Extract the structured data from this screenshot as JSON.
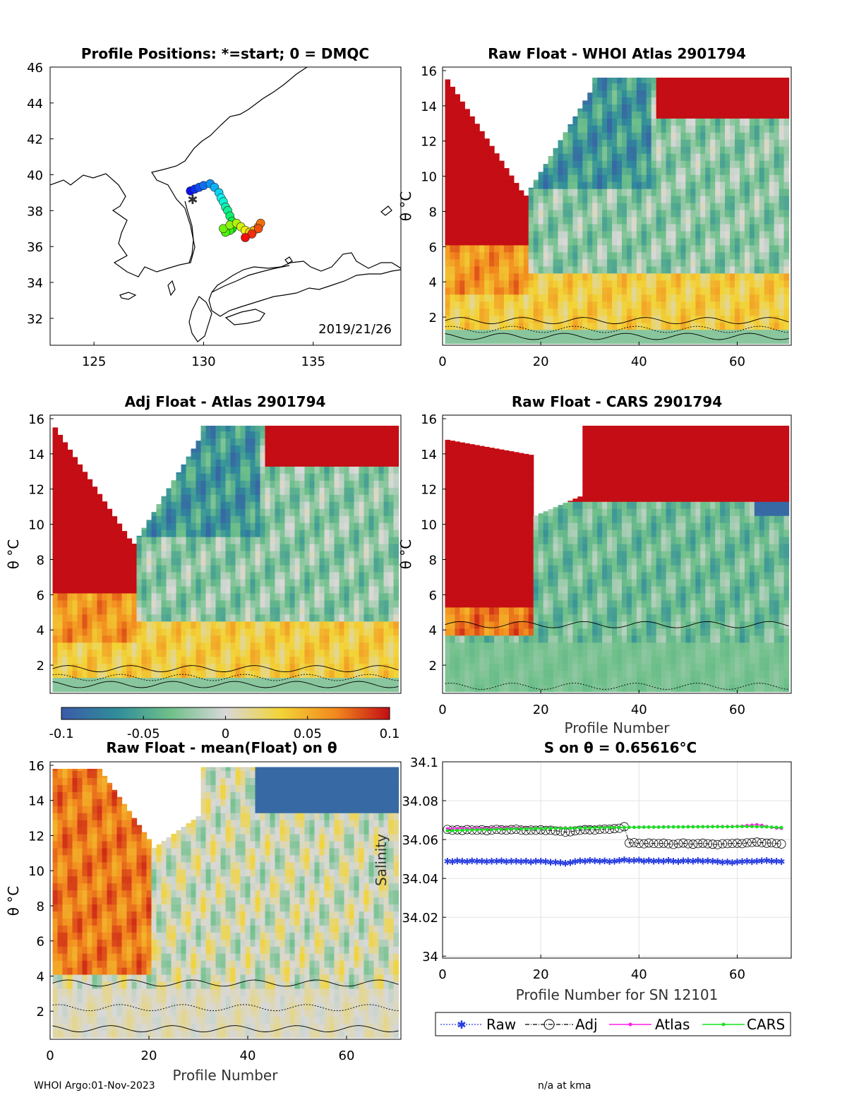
{
  "figure": {
    "footer_left": "WHOI Argo:01-Nov-2023",
    "footer_right": "n/a at kma"
  },
  "colorbar": {
    "ticks": [
      "-0.1",
      "-0.05",
      "0",
      "0.05",
      "0.1"
    ],
    "colors": [
      "#3b5ba8",
      "#2f8c9a",
      "#6fc08a",
      "#d8d8d8",
      "#f2d437",
      "#f28a1e",
      "#c40d14"
    ]
  },
  "chart_data": [
    {
      "id": "map",
      "type": "scatter",
      "title": "Profile Positions: *=start; 0 = DMQC",
      "annotation": "2019/21/26",
      "xlim": [
        123,
        139
      ],
      "ylim": [
        30.5,
        46
      ],
      "xticks": [
        "125",
        "130",
        "135"
      ],
      "yticks": [
        "32",
        "34",
        "36",
        "38",
        "40",
        "42",
        "44",
        "46"
      ],
      "start": [
        129.5,
        38.6
      ],
      "points": {
        "lon": [
          129.4,
          129.6,
          129.8,
          130.0,
          130.3,
          130.5,
          130.7,
          130.8,
          130.9,
          131.0,
          131.1,
          131.2,
          131.3,
          131.4,
          131.3,
          131.2,
          131.0,
          130.9,
          131.2,
          131.5,
          131.7,
          131.9,
          132.1,
          132.3,
          132.5,
          132.6,
          132.5,
          132.2,
          131.9
        ],
        "lat": [
          39.1,
          39.2,
          39.3,
          39.4,
          39.5,
          39.3,
          39.0,
          38.7,
          38.5,
          38.2,
          38.0,
          37.7,
          37.4,
          37.2,
          37.0,
          36.9,
          36.8,
          37.0,
          37.2,
          37.3,
          37.1,
          36.9,
          36.8,
          36.9,
          37.1,
          37.3,
          37.0,
          36.7,
          36.5
        ]
      }
    },
    {
      "id": "p2",
      "type": "heatmap",
      "title": "Raw Float - WHOI Atlas  2901794",
      "ylabel": "θ °C",
      "xlim": [
        0,
        71
      ],
      "ylim": [
        0.4,
        16.2
      ],
      "xticks": [
        "0",
        "20",
        "40",
        "60"
      ],
      "yticks": [
        "2",
        "4",
        "6",
        "8",
        "10",
        "12",
        "14",
        "16"
      ]
    },
    {
      "id": "p3",
      "type": "heatmap",
      "title": "Adj Float - Atlas  2901794",
      "ylabel": "θ °C",
      "xlim": [
        0,
        71
      ],
      "ylim": [
        0.4,
        16.2
      ],
      "xticks": [],
      "yticks": [
        "2",
        "4",
        "6",
        "8",
        "10",
        "12",
        "14",
        "16"
      ]
    },
    {
      "id": "p4",
      "type": "heatmap",
      "title": "Raw Float - CARS  2901794",
      "ylabel": "θ °C",
      "xlabel": "Profile Number",
      "xlim": [
        0,
        71
      ],
      "ylim": [
        0.4,
        16.2
      ],
      "xticks": [
        "0",
        "20",
        "40",
        "60"
      ],
      "yticks": [
        "2",
        "4",
        "6",
        "8",
        "10",
        "12",
        "14",
        "16"
      ]
    },
    {
      "id": "p5",
      "type": "heatmap",
      "title": "Raw Float - mean(Float) on θ",
      "ylabel": "θ °C",
      "xlabel": "Profile Number",
      "xlim": [
        0,
        71
      ],
      "ylim": [
        0.4,
        16.2
      ],
      "xticks": [
        "0",
        "20",
        "40",
        "60"
      ],
      "yticks": [
        "2",
        "4",
        "6",
        "8",
        "10",
        "12",
        "14",
        "16"
      ]
    },
    {
      "id": "p6",
      "type": "line",
      "title": "S on θ = 0.65616°C",
      "ylabel": "Salinity",
      "xlabel": "Profile Number for SN 12101",
      "xlim": [
        0,
        71
      ],
      "ylim": [
        33.999,
        34.1
      ],
      "xticks": [
        "0",
        "20",
        "40",
        "60"
      ],
      "yticks": [
        "34",
        "34.02",
        "34.04",
        "34.06",
        "34.08",
        "34.1"
      ],
      "legend": [
        "Raw",
        "Adj",
        "Atlas",
        "CARS"
      ],
      "series": [
        {
          "name": "Raw",
          "x0": 1,
          "values": [
            34.049,
            34.0488,
            34.0492,
            34.049,
            34.0487,
            34.0491,
            34.0489,
            34.049,
            34.0488,
            34.049,
            34.0489,
            34.0491,
            34.0487,
            34.0489,
            34.049,
            34.0488,
            34.049,
            34.0486,
            34.0489,
            34.049,
            34.0487,
            34.0485,
            34.0484,
            34.0483,
            34.0478,
            34.0482,
            34.0488,
            34.0491,
            34.049,
            34.0493,
            34.0492,
            34.0489,
            34.0491,
            34.0488,
            34.0489,
            34.0493,
            34.0496,
            34.0494,
            34.0493,
            34.0495,
            34.049,
            34.0493,
            34.0489,
            34.0491,
            34.049,
            34.0493,
            34.049,
            34.0488,
            34.0492,
            34.0491,
            34.0489,
            34.0493,
            34.049,
            34.0491,
            34.0489,
            34.0487,
            34.0485,
            34.0486,
            34.0483,
            34.0486,
            34.0488,
            34.049,
            34.0487,
            34.0489,
            34.0491,
            34.0493,
            34.049,
            34.0489,
            34.0488
          ]
        },
        {
          "name": "Adj",
          "x0": 1,
          "values": [
            34.0652,
            34.0648,
            34.065,
            34.0647,
            34.0651,
            34.0649,
            34.0648,
            34.065,
            34.0646,
            34.0649,
            34.0652,
            34.065,
            34.0648,
            34.0651,
            34.0653,
            34.0649,
            34.0647,
            34.0649,
            34.0648,
            34.065,
            34.0647,
            34.0648,
            34.0645,
            34.0643,
            34.0638,
            34.064,
            34.0645,
            34.0648,
            34.0651,
            34.065,
            34.0649,
            34.0652,
            34.0654,
            34.0653,
            34.0656,
            34.0658,
            34.0666,
            34.0582,
            34.0584,
            34.058,
            34.0578,
            34.0582,
            34.058,
            34.0579,
            34.0581,
            34.0578,
            34.0575,
            34.0579,
            34.0582,
            34.0578,
            34.0576,
            34.0579,
            34.0581,
            34.0578,
            34.0576,
            34.0574,
            34.0578,
            34.0579,
            34.058,
            34.0581,
            34.0579,
            34.0583,
            34.0585,
            34.0587,
            34.0584,
            34.0581,
            34.0583,
            34.0579,
            34.0577
          ]
        },
        {
          "name": "Atlas",
          "x0": 1,
          "values": [
            34.0655,
            34.0655,
            34.0656,
            34.0656,
            34.0656,
            34.0656,
            34.0657,
            34.0657,
            34.0657,
            34.0658,
            34.0658,
            34.0659,
            34.0659,
            34.0659,
            34.0659,
            34.0659,
            34.0659,
            34.0658,
            34.0658,
            34.0658,
            34.0658,
            34.0659,
            34.0659,
            34.066,
            34.066,
            34.066,
            34.066,
            34.066,
            34.0661,
            34.0661,
            34.0661,
            34.0662,
            34.0662,
            34.0662,
            34.0663,
            34.0663,
            34.0663,
            34.0663,
            34.0663,
            34.0664,
            34.0664,
            34.0664,
            34.0664,
            34.0664,
            34.0665,
            34.0665,
            34.0665,
            34.0665,
            34.0665,
            34.0666,
            34.0666,
            34.0666,
            34.0666,
            34.0666,
            34.0667,
            34.0667,
            34.0667,
            34.0667,
            34.0667,
            34.0668,
            34.0669,
            34.0672,
            34.0674,
            34.0676,
            34.0673,
            34.0667,
            34.0663,
            34.0659,
            34.0658
          ]
        },
        {
          "name": "CARS",
          "x0": 1,
          "values": [
            34.0645,
            34.0646,
            34.0647,
            34.0648,
            34.0649,
            34.065,
            34.065,
            34.0651,
            34.0652,
            34.0652,
            34.0653,
            34.0654,
            34.0654,
            34.0655,
            34.0655,
            34.0656,
            34.0656,
            34.0656,
            34.0657,
            34.0657,
            34.0657,
            34.0658,
            34.0658,
            34.0658,
            34.0659,
            34.0659,
            34.0659,
            34.066,
            34.066,
            34.066,
            34.0661,
            34.0661,
            34.0661,
            34.0662,
            34.0662,
            34.0662,
            34.0663,
            34.0663,
            34.0663,
            34.0663,
            34.0664,
            34.0664,
            34.0664,
            34.0664,
            34.0664,
            34.0665,
            34.0665,
            34.0665,
            34.0665,
            34.0665,
            34.0665,
            34.0666,
            34.0666,
            34.0666,
            34.0666,
            34.0666,
            34.0666,
            34.0666,
            34.0666,
            34.0667,
            34.0667,
            34.0667,
            34.0667,
            34.0666,
            34.0666,
            34.0665,
            34.0664,
            34.0663,
            34.0662
          ]
        }
      ]
    }
  ]
}
